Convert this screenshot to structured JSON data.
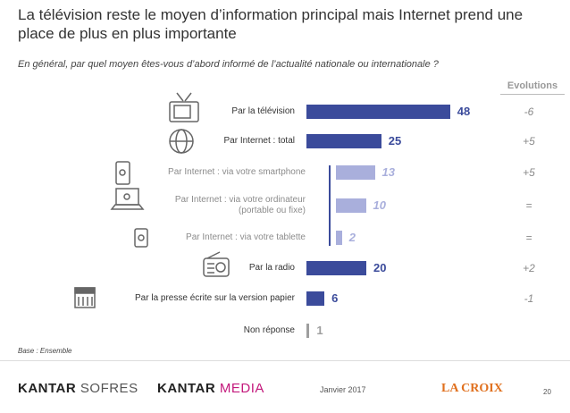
{
  "chart_data": {
    "type": "hbar",
    "title": "La télévision reste le moyen d’information principal mais Internet prend une place de plus en plus importante",
    "subtitle": "En général, par quel moyen êtes-vous d’abord informé de l’actualité nationale ou internationale ?",
    "categories": [
      "Par la télévision",
      "Par Internet : total",
      "Par Internet : via votre smartphone",
      "Par Internet : via votre ordinateur (portable ou fixe)",
      "Par Internet : via votre tablette",
      "Par la radio",
      "Par la presse écrite sur la version papier",
      "Non réponse"
    ],
    "values": [
      48,
      25,
      13,
      10,
      2,
      20,
      6,
      1
    ],
    "colors": [
      "#3b4b9b",
      "#3b4b9b",
      "#a9afdc",
      "#a9afdc",
      "#a9afdc",
      "#3b4b9b",
      "#3b4b9b",
      "#9e9e9e"
    ],
    "xlim": [
      0,
      50
    ],
    "evolutions_title": "Evolutions",
    "evolutions": [
      "-6",
      "+5",
      "+5",
      "=",
      "=",
      "+2",
      "-1"
    ]
  },
  "footer": {
    "base": "Base : Ensemble",
    "logos": [
      {
        "brand": "KANTAR",
        "sub": "SOFRES"
      },
      {
        "brand": "KANTAR",
        "sub": "MEDIA"
      }
    ],
    "date": "Janvier 2017",
    "partner": "LA CROIX",
    "page": "20"
  }
}
